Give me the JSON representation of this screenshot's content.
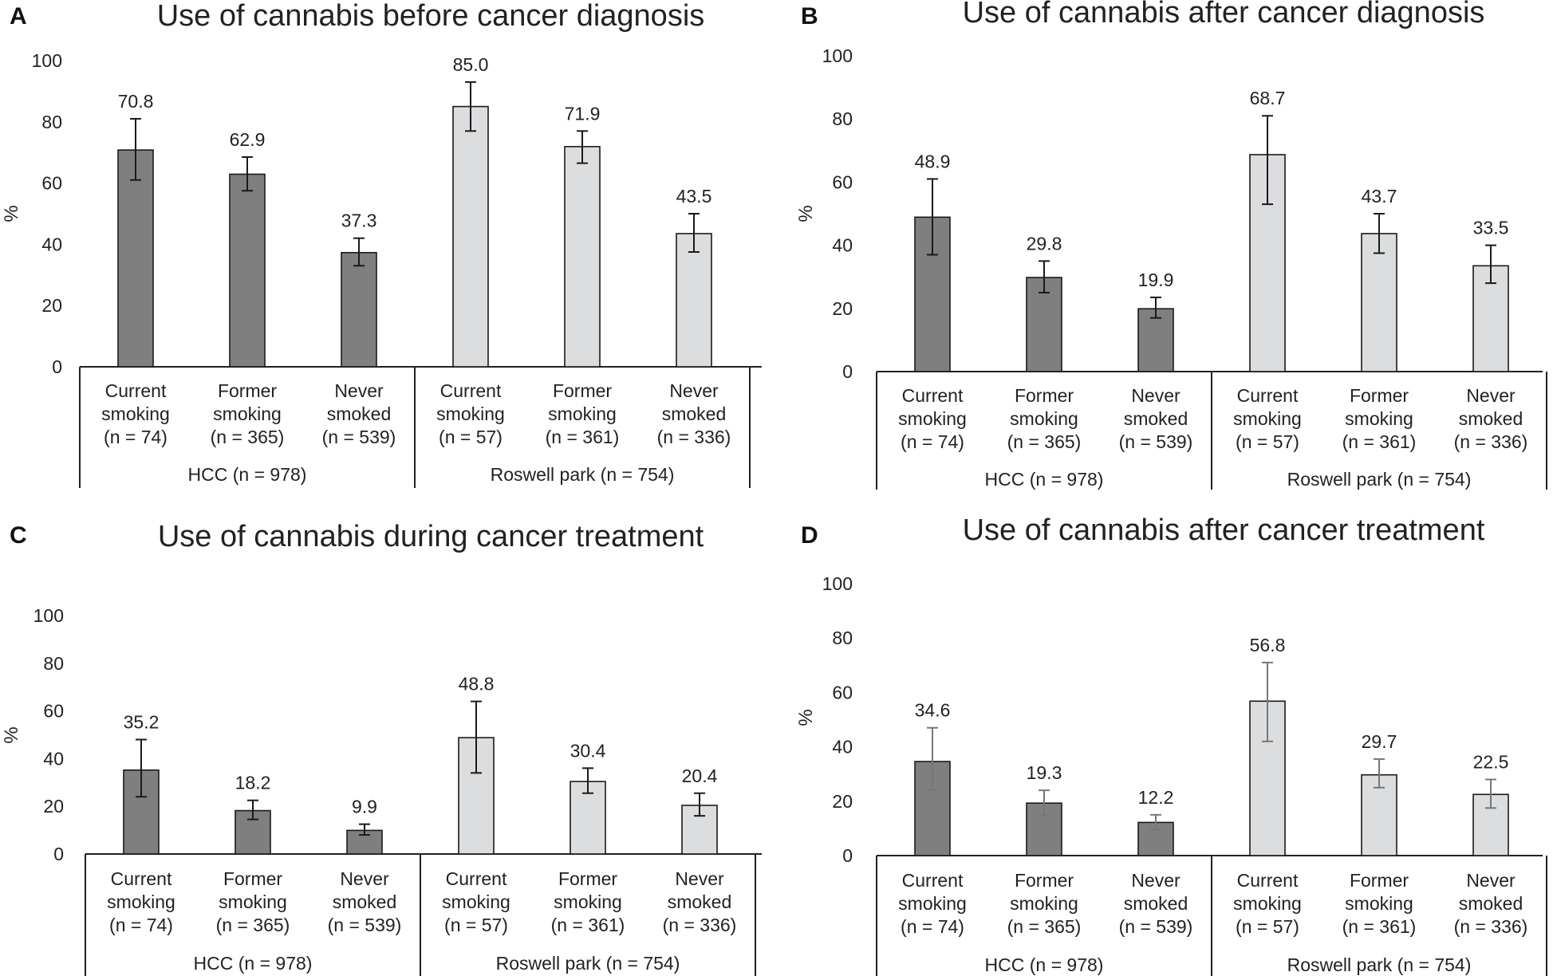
{
  "figure": {
    "colors": {
      "hcc_bar": "#7f7f7f",
      "roswell_bar": "#dcdddf",
      "bar_edge": "#1a1a1a",
      "error_bar_dark": "#1a1a1a",
      "error_bar_light": "#777777"
    }
  },
  "chart_data": [
    {
      "type": "bar",
      "panel": "A",
      "title": "Use of cannabis before cancer diagnosis",
      "ylabel": "%",
      "xlabel": "",
      "ylim": [
        0,
        100
      ],
      "yticks": [
        "0",
        "20",
        "40",
        "60",
        "80",
        "100"
      ],
      "categories": [
        [
          "Current",
          "smoking",
          "(n = 74)"
        ],
        [
          "Former",
          "smoking",
          "(n = 365)"
        ],
        [
          "Never",
          "smoked",
          "(n = 539)"
        ],
        [
          "Current",
          "smoking",
          "(n = 57)"
        ],
        [
          "Former",
          "smoking",
          "(n = 361)"
        ],
        [
          "Never",
          "smoked",
          "(n = 336)"
        ]
      ],
      "groups": [
        "HCC (n = 978)",
        "Roswell park (n = 754)"
      ],
      "values": [
        70.8,
        62.9,
        37.3,
        85.0,
        71.9,
        43.5
      ],
      "value_labels": [
        "70.8",
        "62.9",
        "37.3",
        "85.0",
        "71.9",
        "43.5"
      ],
      "error_low": [
        61,
        57.5,
        33,
        77,
        66.5,
        37.5
      ],
      "error_high": [
        81,
        68.5,
        42,
        93,
        77,
        50
      ]
    },
    {
      "type": "bar",
      "panel": "B",
      "title": "Use of cannabis after cancer diagnosis",
      "ylabel": "%",
      "xlabel": "",
      "ylim": [
        0,
        100
      ],
      "yticks": [
        "0",
        "20",
        "40",
        "60",
        "80",
        "100"
      ],
      "categories": [
        [
          "Current",
          "smoking",
          "(n = 74)"
        ],
        [
          "Former",
          "smoking",
          "(n = 365)"
        ],
        [
          "Never",
          "smoked",
          "(n = 539)"
        ],
        [
          "Current",
          "smoking",
          "(n = 57)"
        ],
        [
          "Former",
          "smoking",
          "(n = 361)"
        ],
        [
          "Never",
          "smoked",
          "(n = 336)"
        ]
      ],
      "groups": [
        "HCC (n = 978)",
        "Roswell park (n = 754)"
      ],
      "values": [
        48.9,
        29.8,
        19.9,
        68.7,
        43.7,
        33.5
      ],
      "value_labels": [
        "48.9",
        "29.8",
        "19.9",
        "68.7",
        "43.7",
        "33.5"
      ],
      "error_low": [
        37,
        25,
        17,
        53,
        37.5,
        28
      ],
      "error_high": [
        61,
        35,
        23.5,
        81,
        50,
        40
      ]
    },
    {
      "type": "bar",
      "panel": "C",
      "title": "Use of cannabis during cancer treatment",
      "ylabel": "%",
      "xlabel": "",
      "ylim": [
        0,
        100
      ],
      "yticks": [
        "0",
        "20",
        "40",
        "60",
        "80",
        "100"
      ],
      "categories": [
        [
          "Current",
          "smoking",
          "(n = 74)"
        ],
        [
          "Former",
          "smoking",
          "(n = 365)"
        ],
        [
          "Never",
          "smoked",
          "(n = 539)"
        ],
        [
          "Current",
          "smoking",
          "(n = 57)"
        ],
        [
          "Former",
          "smoking",
          "(n = 361)"
        ],
        [
          "Never",
          "smoked",
          "(n = 336)"
        ]
      ],
      "groups": [
        "HCC (n = 978)",
        "Roswell park (n = 754)"
      ],
      "values": [
        35.2,
        18.2,
        9.9,
        48.8,
        30.4,
        20.4
      ],
      "value_labels": [
        "35.2",
        "18.2",
        "9.9",
        "48.8",
        "30.4",
        "20.4"
      ],
      "error_low": [
        24,
        14.5,
        8,
        34,
        25.5,
        16
      ],
      "error_high": [
        48,
        22.5,
        12.5,
        64,
        36,
        25.5
      ]
    },
    {
      "type": "bar",
      "panel": "D",
      "title": "Use of cannabis after cancer treatment",
      "ylabel": "%",
      "xlabel": "",
      "ylim": [
        0,
        100
      ],
      "yticks": [
        "0",
        "20",
        "40",
        "60",
        "80",
        "100"
      ],
      "categories": [
        [
          "Current",
          "smoking",
          "(n = 74)"
        ],
        [
          "Former",
          "smoking",
          "(n = 365)"
        ],
        [
          "Never",
          "smoked",
          "(n = 539)"
        ],
        [
          "Current",
          "smoking",
          "(n = 57)"
        ],
        [
          "Former",
          "smoking",
          "(n = 361)"
        ],
        [
          "Never",
          "smoked",
          "(n = 336)"
        ]
      ],
      "groups": [
        "HCC (n = 978)",
        "Roswell park (n = 754)"
      ],
      "values": [
        34.6,
        19.3,
        12.2,
        56.8,
        29.7,
        22.5
      ],
      "value_labels": [
        "34.6",
        "19.3",
        "12.2",
        "56.8",
        "29.7",
        "22.5"
      ],
      "error_low": [
        24,
        15,
        9.5,
        42,
        25,
        17.5
      ],
      "error_high": [
        47,
        24,
        15,
        71,
        35.5,
        28
      ]
    }
  ]
}
